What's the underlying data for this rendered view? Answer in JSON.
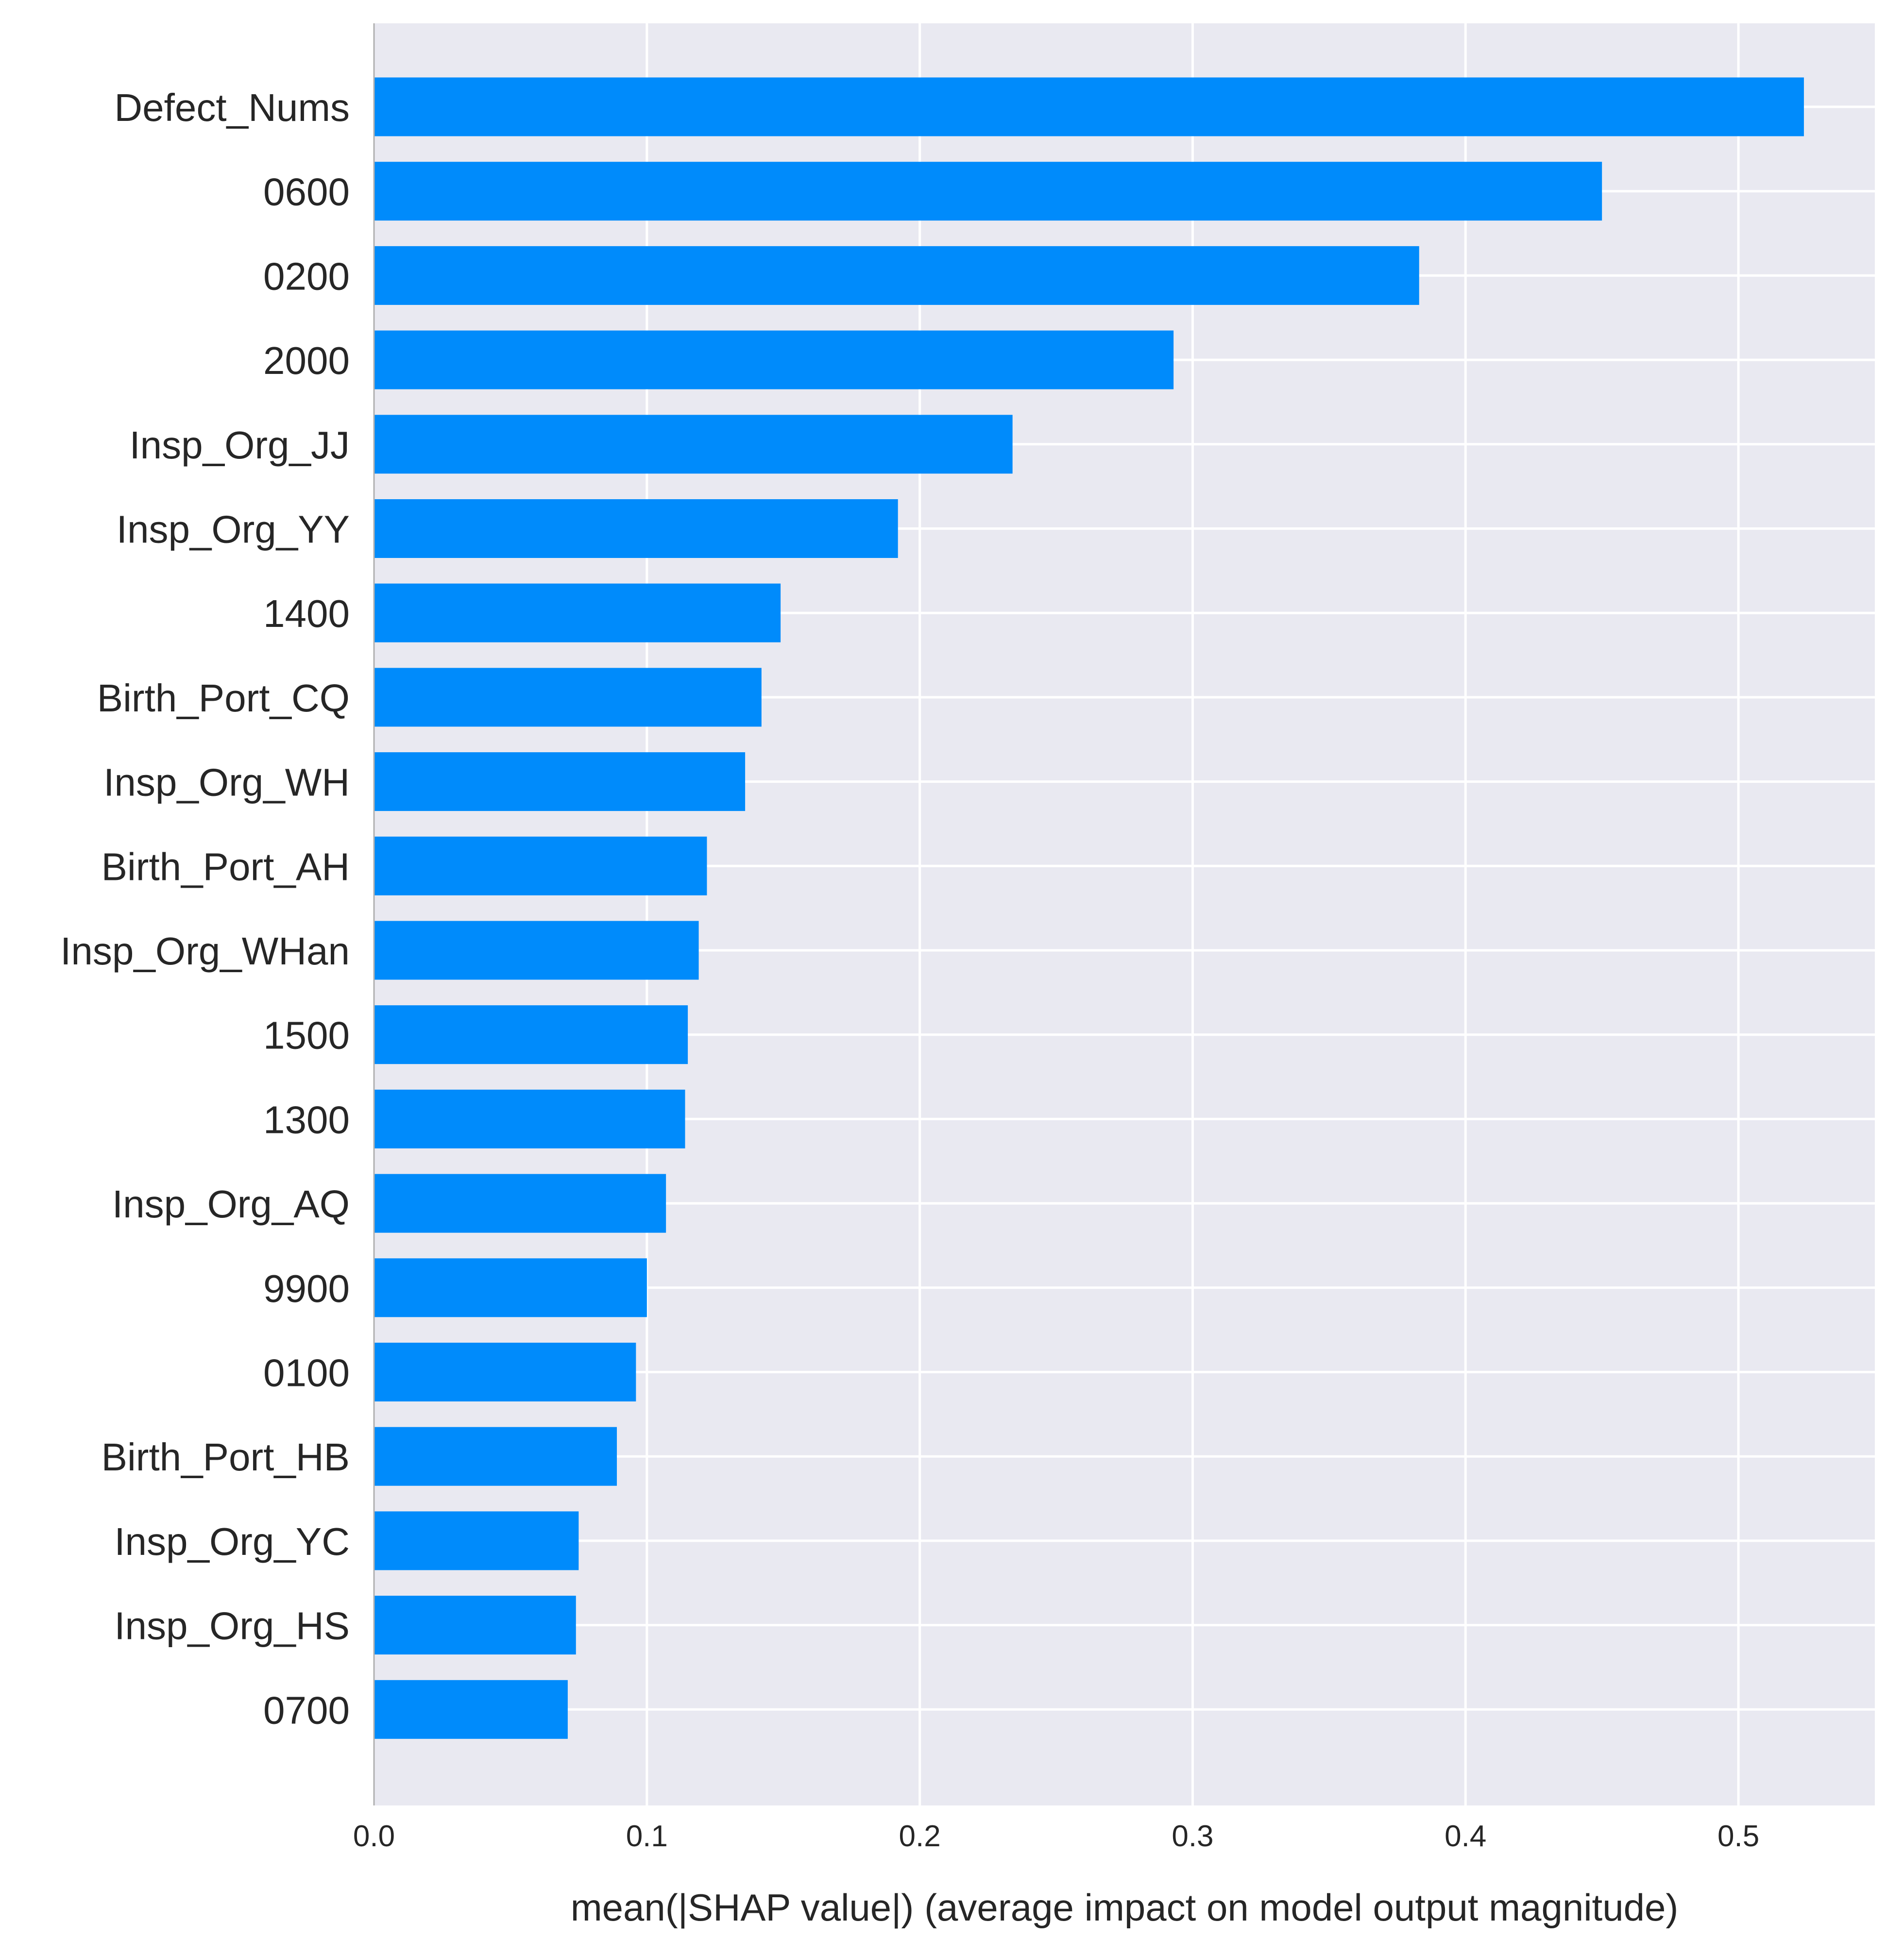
{
  "colors": {
    "plot_background": "#e9e9f1",
    "grid": "#ffffff",
    "bar": "#008bfb",
    "axis_line": "#b0b0b0",
    "text": "#262626"
  },
  "chart_data": {
    "type": "bar",
    "orientation": "horizontal",
    "title": "",
    "xlabel": "mean(|SHAP value|) (average impact on model output magnitude)",
    "ylabel": "",
    "xlim": [
      0,
      0.55
    ],
    "xticks": [
      0.0,
      0.1,
      0.2,
      0.3,
      0.4,
      0.5
    ],
    "xtick_labels": [
      "0.0",
      "0.1",
      "0.2",
      "0.3",
      "0.4",
      "0.5"
    ],
    "grid": true,
    "legend": "none",
    "categories": [
      "Defect_Nums",
      "0600",
      "0200",
      "2000",
      "Insp_Org_JJ",
      "Insp_Org_YY",
      "1400",
      "Birth_Port_CQ",
      "Insp_Org_WH",
      "Birth_Port_AH",
      "Insp_Org_WHan",
      "1500",
      "1300",
      "Insp_Org_AQ",
      "9900",
      "0100",
      "Birth_Port_HB",
      "Insp_Org_YC",
      "Insp_Org_HS",
      "0700"
    ],
    "values": [
      0.524,
      0.45,
      0.383,
      0.293,
      0.234,
      0.192,
      0.149,
      0.142,
      0.136,
      0.122,
      0.119,
      0.115,
      0.114,
      0.107,
      0.1,
      0.096,
      0.089,
      0.075,
      0.074,
      0.071
    ]
  }
}
